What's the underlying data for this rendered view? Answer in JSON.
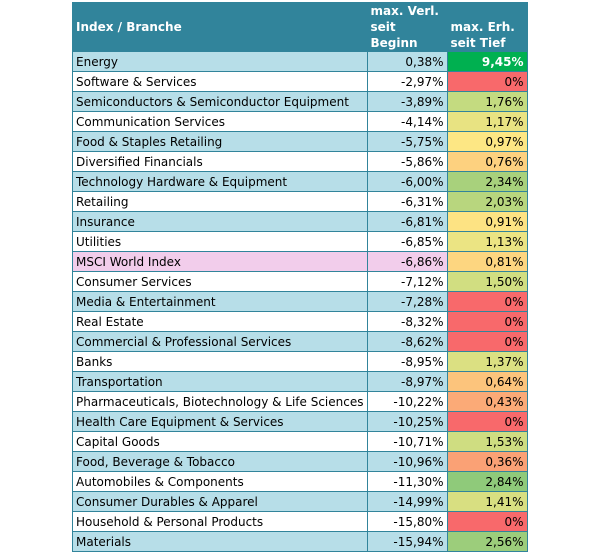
{
  "header": {
    "col1": "Index / Branche",
    "col2_line1": "max. Verl.",
    "col2_line2": "seit Beginn",
    "col3_line1": "max. Erh.",
    "col3_line2": "seit Tief"
  },
  "colors": {
    "header_bg": "#31849b",
    "row_odd": "#b7dee8",
    "row_even": "#ffffff",
    "msci_highlight": "#f2cdeb"
  },
  "rows": [
    {
      "name": "Energy",
      "loss": "0,38%",
      "gain": "9,45%",
      "gain_color": "#00b050"
    },
    {
      "name": "Software & Services",
      "loss": "-2,97%",
      "gain": "0%",
      "gain_color": "#f8696b"
    },
    {
      "name": "Semiconductors & Semiconductor Equipment",
      "loss": "-3,89%",
      "gain": "1,76%",
      "gain_color": "#c4db80"
    },
    {
      "name": "Communication Services",
      "loss": "-4,14%",
      "gain": "1,17%",
      "gain_color": "#e8e382"
    },
    {
      "name": "Food & Staples Retailing",
      "loss": "-5,75%",
      "gain": "0,97%",
      "gain_color": "#fde784"
    },
    {
      "name": "Diversified Financials",
      "loss": "-5,86%",
      "gain": "0,76%",
      "gain_color": "#fdd17f"
    },
    {
      "name": "Technology Hardware & Equipment",
      "loss": "-6,00%",
      "gain": "2,34%",
      "gain_color": "#a8d17c"
    },
    {
      "name": "Retailing",
      "loss": "-6,31%",
      "gain": "2,03%",
      "gain_color": "#b8d67e"
    },
    {
      "name": "Insurance",
      "loss": "-6,81%",
      "gain": "0,91%",
      "gain_color": "#fde383"
    },
    {
      "name": "Utilities",
      "loss": "-6,85%",
      "gain": "1,13%",
      "gain_color": "#ebe483"
    },
    {
      "name": "MSCI World Index",
      "loss": "-6,86%",
      "gain": "0,81%",
      "gain_color": "#fdd680",
      "highlight": true
    },
    {
      "name": "Consumer Services",
      "loss": "-7,12%",
      "gain": "1,50%",
      "gain_color": "#d1de81"
    },
    {
      "name": "Media & Entertainment",
      "loss": "-7,28%",
      "gain": "0%",
      "gain_color": "#f8696b"
    },
    {
      "name": "Real Estate",
      "loss": "-8,32%",
      "gain": "0%",
      "gain_color": "#f8696b"
    },
    {
      "name": "Commercial & Professional Services",
      "loss": "-8,62%",
      "gain": "0%",
      "gain_color": "#f8696b"
    },
    {
      "name": "Banks",
      "loss": "-8,95%",
      "gain": "1,37%",
      "gain_color": "#dbe082"
    },
    {
      "name": "Transportation",
      "loss": "-8,97%",
      "gain": "0,64%",
      "gain_color": "#fcc47c"
    },
    {
      "name": "Pharmaceuticals, Biotechnology & Life Sciences",
      "loss": "-10,22%",
      "gain": "0,43%",
      "gain_color": "#fbaa77"
    },
    {
      "name": "Health Care Equipment & Services",
      "loss": "-10,25%",
      "gain": "0%",
      "gain_color": "#f8696b"
    },
    {
      "name": "Capital Goods",
      "loss": "-10,71%",
      "gain": "1,53%",
      "gain_color": "#cfdd81"
    },
    {
      "name": "Food, Beverage & Tobacco",
      "loss": "-10,96%",
      "gain": "0,36%",
      "gain_color": "#faa175"
    },
    {
      "name": "Automobiles & Components",
      "loss": "-11,30%",
      "gain": "2,84%",
      "gain_color": "#8fca7a"
    },
    {
      "name": "Consumer Durables & Apparel",
      "loss": "-14,99%",
      "gain": "1,41%",
      "gain_color": "#d8df81"
    },
    {
      "name": "Household & Personal Products",
      "loss": "-15,80%",
      "gain": "0%",
      "gain_color": "#f8696b"
    },
    {
      "name": "Materials",
      "loss": "-15,94%",
      "gain": "2,56%",
      "gain_color": "#9ccd7b"
    }
  ]
}
